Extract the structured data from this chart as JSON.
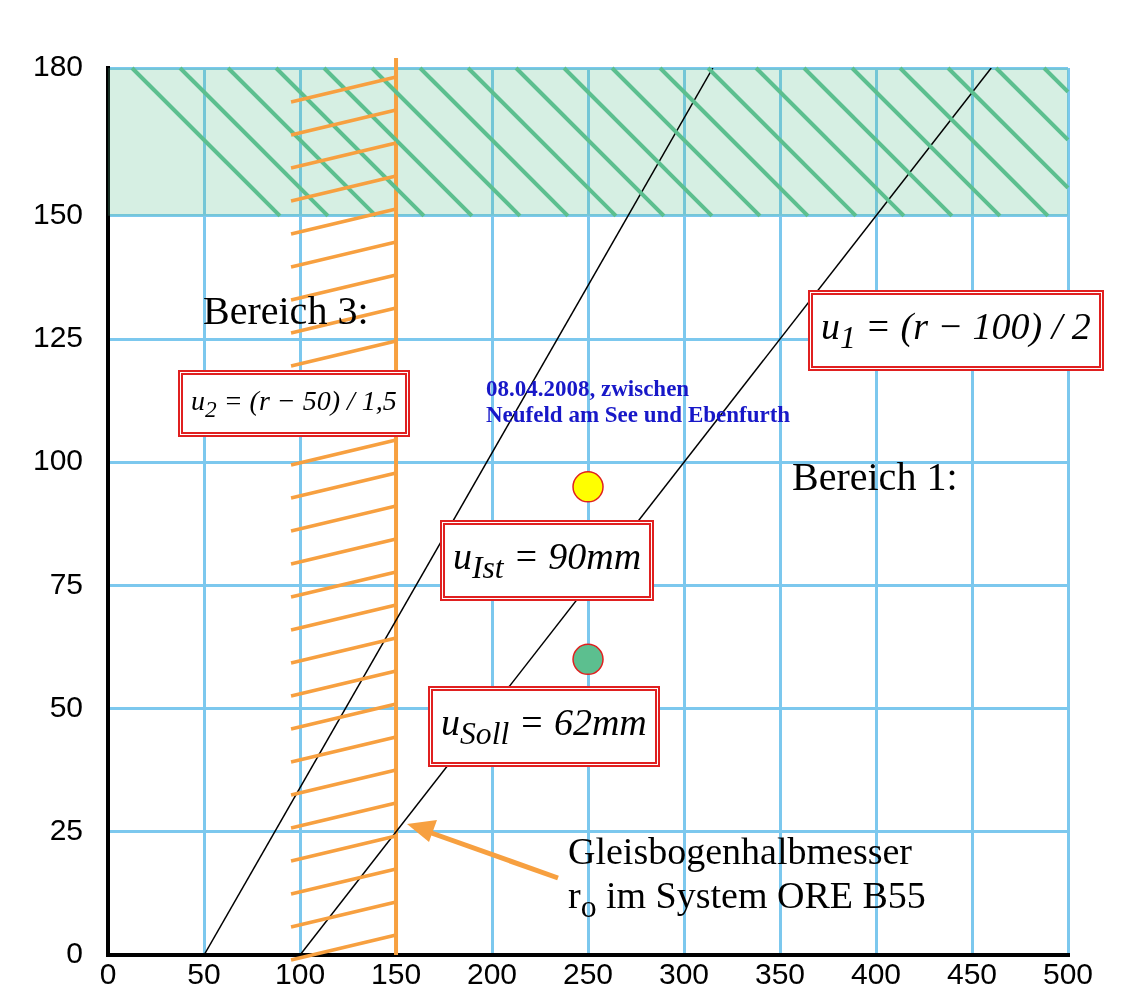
{
  "chart_data": {
    "type": "line",
    "xlim": [
      0,
      500
    ],
    "xticks": [
      0,
      50,
      100,
      150,
      200,
      250,
      300,
      350,
      400,
      450,
      500
    ],
    "ylim": [
      0,
      180
    ],
    "yticks": [
      0,
      25,
      50,
      75,
      100,
      125,
      150,
      180
    ],
    "grid": true,
    "legend": false,
    "series": [
      {
        "x": [
          100,
          460
        ],
        "values": [
          0,
          180
        ],
        "color": "#000000",
        "marker": "none"
      },
      {
        "x": [
          50,
          315
        ],
        "values": [
          0,
          180
        ],
        "color": "#000000",
        "marker": "none"
      },
      {
        "type": "scatter",
        "x": [
          250
        ],
        "values": [
          95
        ],
        "color": "#ffff00",
        "marker": "circle"
      },
      {
        "type": "scatter",
        "x": [
          250
        ],
        "values": [
          60
        ],
        "color": "#5cbf8f",
        "marker": "circle"
      }
    ],
    "bands": [
      {
        "axis": "y",
        "from": 150,
        "to": 180,
        "color": "#5cbf8f"
      }
    ],
    "ref_lines": [
      {
        "axis": "x",
        "value": 150,
        "color": "#f7a040"
      }
    ],
    "annotations": [
      "Bereich 3:",
      "u$_{2}$ = (r − 50) / 1,5",
      "08.04.2008, zwischen\nNeufeld am See und Ebenfurth",
      "u$_{1}$ = (r − 100) / 2",
      "Bereich 1:",
      "u$_{Ist}$ = 90mm",
      "u$_{Soll}$ = 62mm",
      "Gleisbogenhalbmesser\nr$_{o}$ im System ORE B55"
    ]
  }
}
